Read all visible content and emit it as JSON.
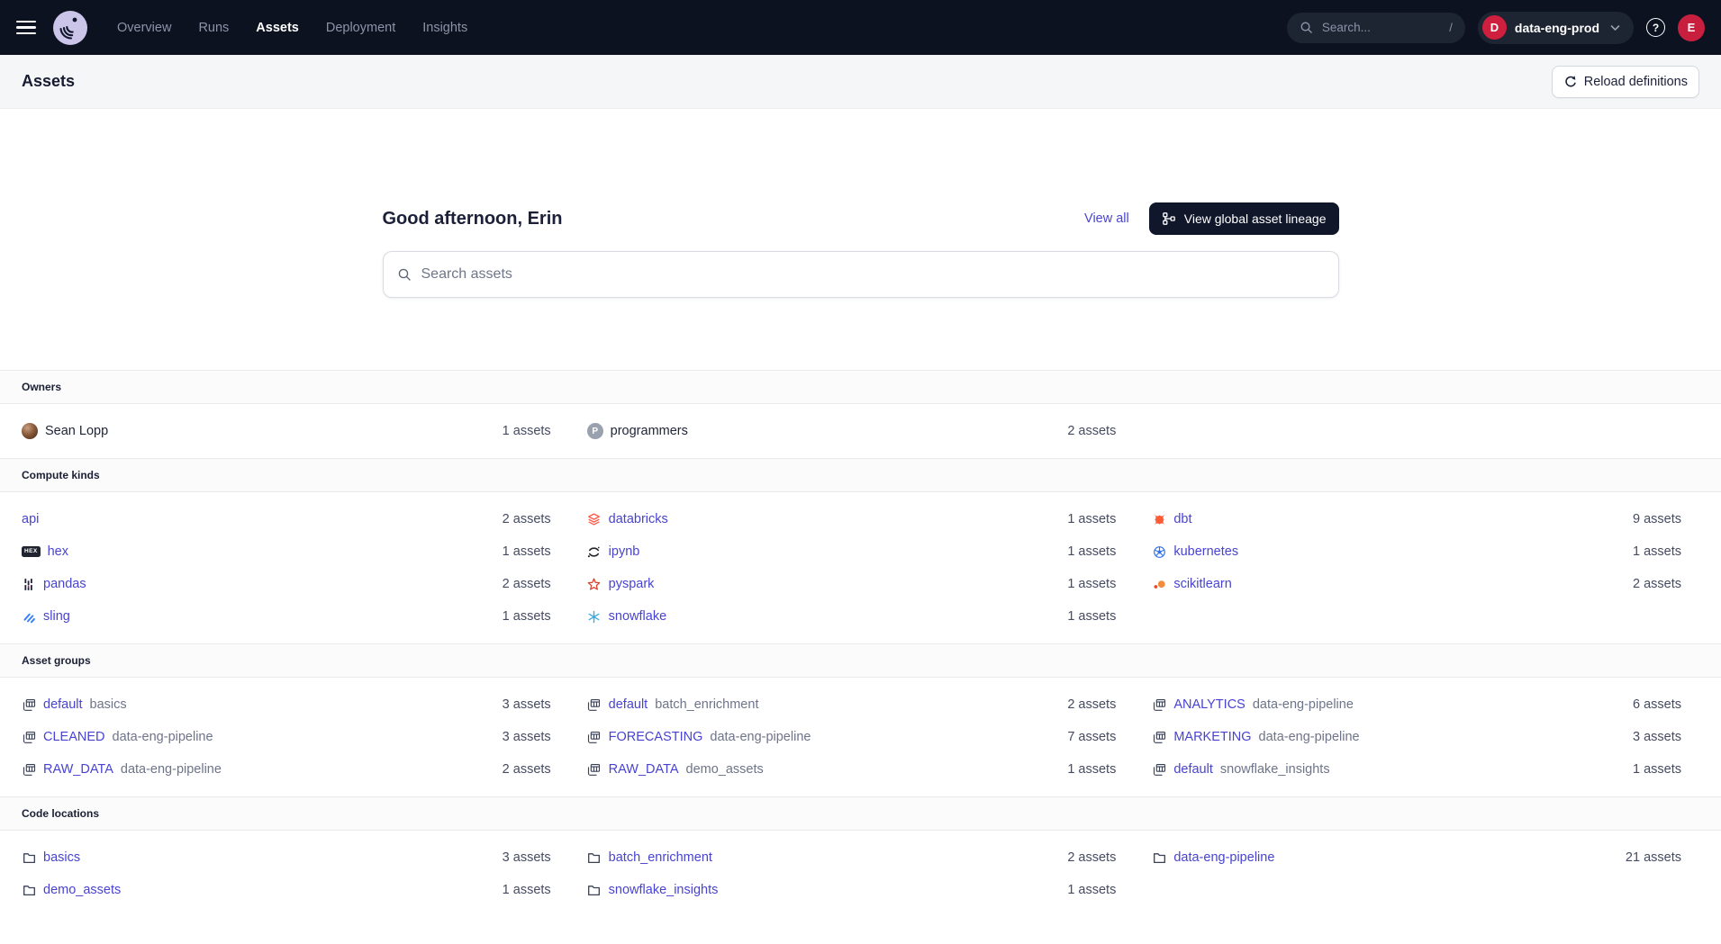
{
  "nav": {
    "items": [
      {
        "label": "Overview",
        "active": false
      },
      {
        "label": "Runs",
        "active": false
      },
      {
        "label": "Assets",
        "active": true
      },
      {
        "label": "Deployment",
        "active": false
      },
      {
        "label": "Insights",
        "active": false
      }
    ],
    "search": {
      "placeholder": "Search...",
      "shortcut": "/"
    },
    "deployment": {
      "label": "data-eng-prod",
      "badge_letter": "D"
    },
    "help_glyph": "?",
    "avatar_letter": "E"
  },
  "page_header": {
    "title": "Assets",
    "reload_label": "Reload definitions"
  },
  "greeting": {
    "title": "Good afternoon, Erin",
    "view_all": "View all",
    "lineage_button": "View global asset lineage"
  },
  "asset_search": {
    "placeholder": "Search assets"
  },
  "colors": {
    "nav_background": "#0D1221",
    "link": "#4843D1",
    "badge_red": "#CE1F3E",
    "button_dark": "#10172B",
    "databricks_orange": "#FF5B49",
    "dbt_orange": "#FF5C35",
    "snowflake_blue": "#3FA9E0",
    "kubernetes_blue": "#3371E3",
    "sling_blue": "#3B82F6"
  },
  "sections": [
    {
      "label": "Owners",
      "rows": [
        [
          {
            "icon": "user-avatar",
            "name": "Sean Lopp",
            "count": "1 assets"
          },
          {
            "icon": "team-badge",
            "badge_letter": "P",
            "name": "programmers",
            "count": "2 assets"
          },
          null
        ]
      ]
    },
    {
      "label": "Compute kinds",
      "rows": [
        [
          {
            "name": "api",
            "count": "2 assets"
          },
          {
            "icon": "databricks-icon",
            "name": "databricks",
            "count": "1 assets"
          },
          {
            "icon": "dbt-icon",
            "name": "dbt",
            "count": "9 assets"
          }
        ],
        [
          {
            "icon": "hex-icon",
            "name": "hex",
            "count": "1 assets"
          },
          {
            "icon": "ipynb-icon",
            "name": "ipynb",
            "count": "1 assets"
          },
          {
            "icon": "kubernetes-icon",
            "name": "kubernetes",
            "count": "1 assets"
          }
        ],
        [
          {
            "icon": "pandas-icon",
            "name": "pandas",
            "count": "2 assets"
          },
          {
            "icon": "pyspark-icon",
            "name": "pyspark",
            "count": "1 assets"
          },
          {
            "icon": "scikitlearn-icon",
            "name": "scikitlearn",
            "count": "2 assets"
          }
        ],
        [
          {
            "icon": "sling-icon",
            "name": "sling",
            "count": "1 assets"
          },
          {
            "icon": "snowflake-icon",
            "name": "snowflake",
            "count": "1 assets"
          },
          null
        ]
      ]
    },
    {
      "label": "Asset groups",
      "rows": [
        [
          {
            "icon": "asset-group-icon",
            "name": "default",
            "suffix": "basics",
            "count": "3 assets"
          },
          {
            "icon": "asset-group-icon",
            "name": "default",
            "suffix": "batch_enrichment",
            "count": "2 assets"
          },
          {
            "icon": "asset-group-icon",
            "name": "ANALYTICS",
            "suffix": "data-eng-pipeline",
            "count": "6 assets"
          }
        ],
        [
          {
            "icon": "asset-group-icon",
            "name": "CLEANED",
            "suffix": "data-eng-pipeline",
            "count": "3 assets"
          },
          {
            "icon": "asset-group-icon",
            "name": "FORECASTING",
            "suffix": "data-eng-pipeline",
            "count": "7 assets"
          },
          {
            "icon": "asset-group-icon",
            "name": "MARKETING",
            "suffix": "data-eng-pipeline",
            "count": "3 assets"
          }
        ],
        [
          {
            "icon": "asset-group-icon",
            "name": "RAW_DATA",
            "suffix": "data-eng-pipeline",
            "count": "2 assets"
          },
          {
            "icon": "asset-group-icon",
            "name": "RAW_DATA",
            "suffix": "demo_assets",
            "count": "1 assets"
          },
          {
            "icon": "asset-group-icon",
            "name": "default",
            "suffix": "snowflake_insights",
            "count": "1 assets"
          }
        ]
      ]
    },
    {
      "label": "Code locations",
      "rows": [
        [
          {
            "icon": "folder-icon",
            "name": "basics",
            "count": "3 assets"
          },
          {
            "icon": "folder-icon",
            "name": "batch_enrichment",
            "count": "2 assets"
          },
          {
            "icon": "folder-icon",
            "name": "data-eng-pipeline",
            "count": "21 assets"
          }
        ],
        [
          {
            "icon": "folder-icon",
            "name": "demo_assets",
            "count": "1 assets"
          },
          {
            "icon": "folder-icon",
            "name": "snowflake_insights",
            "count": "1 assets"
          },
          null
        ]
      ]
    }
  ]
}
